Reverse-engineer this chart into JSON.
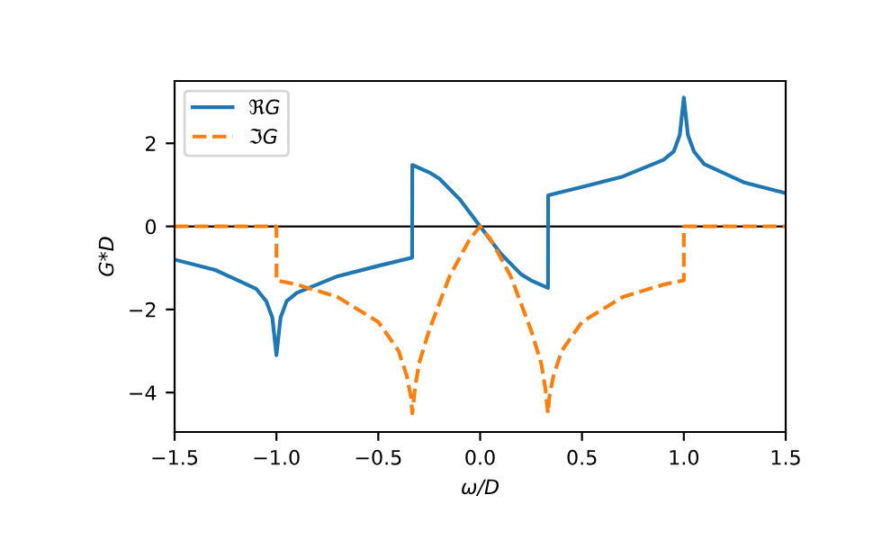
{
  "chart_data": {
    "type": "line",
    "xlabel": "ω/D",
    "ylabel": "G*D",
    "xlim": [
      -1.5,
      1.5
    ],
    "ylim": [
      -4.95,
      3.5
    ],
    "xticks": [
      {
        "value": -1.5,
        "label": "−1.5"
      },
      {
        "value": -1.0,
        "label": "−1.0"
      },
      {
        "value": -0.5,
        "label": "−0.5"
      },
      {
        "value": 0,
        "label": "0.0"
      },
      {
        "value": 0.5,
        "label": "0.5"
      },
      {
        "value": 1,
        "label": "1.0"
      },
      {
        "value": 1.5,
        "label": "1.5"
      }
    ],
    "yticks": [
      {
        "value": -4,
        "label": "−4"
      },
      {
        "value": -2,
        "label": "−2"
      },
      0,
      2
    ],
    "grid": false,
    "legend": "top left",
    "ref_lines": [
      {
        "axis": "y",
        "value": 0,
        "color": "#000000"
      }
    ],
    "series": [
      {
        "name": "ℜG",
        "color": "#1f77b4",
        "line_style": "solid",
        "x": [
          -1.5,
          -1.3,
          -1.1,
          -1.05,
          -1.02,
          -1.0,
          -0.98,
          -0.95,
          -0.9,
          -0.8,
          -0.7,
          -0.5,
          -0.334,
          -0.333,
          -0.25,
          -0.2,
          -0.1,
          0,
          0.1,
          0.2,
          0.25,
          0.333,
          0.334,
          0.5,
          0.7,
          0.8,
          0.9,
          0.95,
          0.98,
          1.0,
          1.02,
          1.05,
          1.1,
          1.3,
          1.5
        ],
        "values": [
          -0.8,
          -1.05,
          -1.5,
          -1.8,
          -2.2,
          -3.1,
          -2.2,
          -1.8,
          -1.6,
          -1.4,
          -1.2,
          -0.95,
          -0.75,
          1.48,
          1.3,
          1.15,
          0.65,
          0,
          -0.65,
          -1.15,
          -1.3,
          -1.48,
          0.75,
          0.95,
          1.2,
          1.4,
          1.6,
          1.8,
          2.2,
          3.1,
          2.2,
          1.8,
          1.5,
          1.05,
          0.8
        ]
      },
      {
        "name": "ℑG",
        "color": "#ff7f0e",
        "line_style": "dashed",
        "x": [
          -1.5,
          -1.0,
          -1.0,
          -0.9,
          -0.7,
          -0.5,
          -0.4,
          -0.36,
          -0.34,
          -0.333,
          -0.32,
          -0.3,
          -0.25,
          -0.15,
          -0.05,
          0,
          0.05,
          0.15,
          0.25,
          0.3,
          0.32,
          0.333,
          0.34,
          0.36,
          0.4,
          0.5,
          0.7,
          0.9,
          1.0,
          1.0,
          1.5
        ],
        "values": [
          0,
          0,
          -1.3,
          -1.4,
          -1.7,
          -2.3,
          -3.0,
          -3.6,
          -4.1,
          -4.5,
          -3.9,
          -3.3,
          -2.5,
          -1.2,
          -0.3,
          0,
          -0.3,
          -1.2,
          -2.5,
          -3.3,
          -3.9,
          -4.5,
          -4.1,
          -3.6,
          -3.0,
          -2.3,
          -1.7,
          -1.4,
          -1.3,
          0,
          0
        ]
      }
    ]
  }
}
